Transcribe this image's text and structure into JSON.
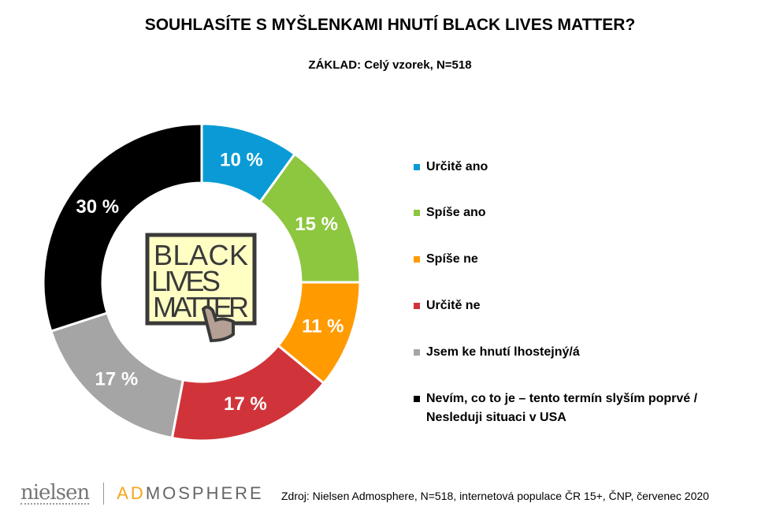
{
  "title": "SOUHLASÍTE S MYŠLENKAMI HNUTÍ BLACK LIVES MATTER?",
  "subtitle": "ZÁKLAD: Celý vzorek, N=518",
  "chart_data": {
    "type": "pie",
    "donut": true,
    "title": "SOUHLASÍTE S MYŠLENKAMI HNUTÍ BLACK LIVES MATTER?",
    "categories": [
      "Určitě ano",
      "Spíše ano",
      "Spíše ne",
      "Určitě ne",
      "Jsem ke hnutí lhostejný/á",
      "Nevím, co to je – tento termín slyším poprvé / Nesleduji situaci v USA"
    ],
    "values": [
      10,
      15,
      11,
      17,
      17,
      30
    ],
    "labels": [
      "10 %",
      "15 %",
      "11 %",
      "17 %",
      "17 %",
      "30 %"
    ],
    "colors": [
      "#0a9bd6",
      "#8dc63f",
      "#ff9b00",
      "#d0343a",
      "#a5a5a5",
      "#000000"
    ],
    "label_colors": [
      "#ffffff",
      "#ffffff",
      "#ffffff",
      "#ffffff",
      "#ffffff",
      "#ffffff"
    ],
    "legend_placement": "right"
  },
  "legend": [
    "Určitě ano",
    "Spíše ano",
    "Spíše ne",
    "Určitě ne",
    "Jsem ke hnutí lhostejný/á",
    "Nevím, co to je – tento termín slyším poprvé /",
    "Nesleduji situaci v USA"
  ],
  "center_logo": "BLACK LIVES MATTER",
  "footer": {
    "logo1": "nielsen",
    "logo2a": "AD",
    "logo2b": "MOSPHERE",
    "source": "Zdroj: Nielsen Admosphere, N=518, internetová populace ČR 15+, ČNP, červenec 2020"
  }
}
